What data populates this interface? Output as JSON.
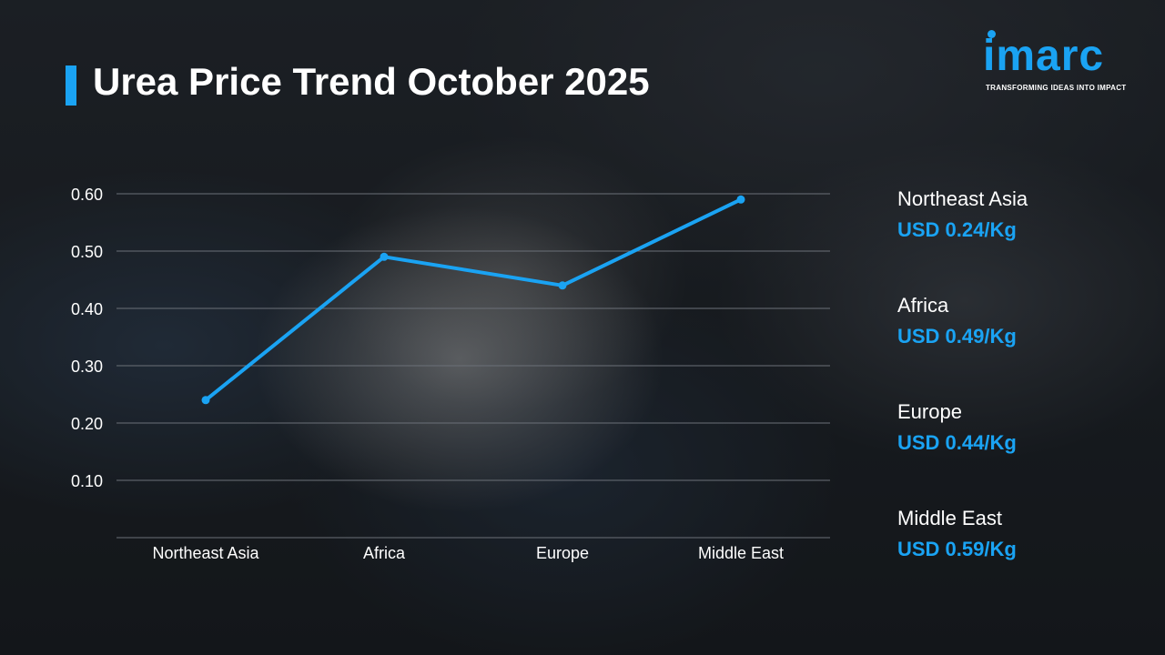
{
  "title": "Urea Price Trend October 2025",
  "logo": {
    "name": "imarc",
    "tagline": "TRANSFORMING IDEAS INTO IMPACT"
  },
  "colors": {
    "accent": "#1aa3f3",
    "text": "#ffffff",
    "grid": "#6b7078"
  },
  "chart_data": {
    "type": "line",
    "title": "",
    "xlabel": "",
    "ylabel": "",
    "categories": [
      "Northeast Asia",
      "Africa",
      "Europe",
      "Middle East"
    ],
    "series": [
      {
        "values": [
          0.24,
          0.49,
          0.44,
          0.59
        ]
      }
    ],
    "yticks": [
      "0.60",
      "0.50",
      "0.40",
      "0.30",
      "0.20",
      "0.10"
    ],
    "ylim": [
      0,
      0.6
    ],
    "grid": true,
    "legend": "none"
  },
  "price_list": [
    {
      "region": "Northeast Asia",
      "price": "USD 0.24/Kg"
    },
    {
      "region": "Africa",
      "price": "USD 0.49/Kg"
    },
    {
      "region": "Europe",
      "price": "USD 0.44/Kg"
    },
    {
      "region": "Middle East",
      "price": "USD 0.59/Kg"
    }
  ]
}
